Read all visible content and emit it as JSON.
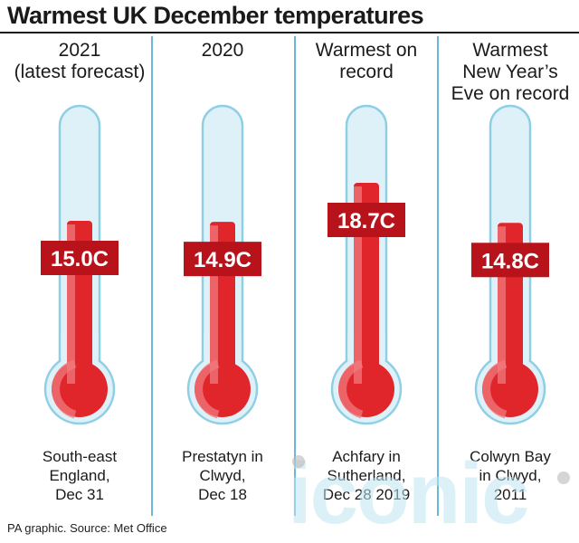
{
  "title": "Warmest UK December temperatures",
  "footnote": "PA graphic. Source: Met Office",
  "watermark": "iconic",
  "colors": {
    "tube_outline": "#8fcfe4",
    "tube_fill": "#dff1f8",
    "mercury": "#e1262b",
    "mercury_shade": "#f07a7e",
    "label_bg": "#b8131b",
    "label_text": "#ffffff",
    "divider": "#3a9fd0"
  },
  "chart_data": {
    "type": "bar",
    "title": "Warmest UK December temperatures",
    "unit": "C",
    "categories": [
      "2021 (latest forecast)",
      "2020",
      "Warmest on record",
      "Warmest New Year's Eve on record"
    ],
    "values": [
      15.0,
      14.9,
      18.7,
      14.8
    ],
    "value_labels": [
      "15.0C",
      "14.9C",
      "18.7C",
      "14.8C"
    ],
    "headers": [
      [
        "2021",
        "(latest forecast)"
      ],
      [
        "2020"
      ],
      [
        "Warmest on",
        "record"
      ],
      [
        "Warmest",
        "New Year’s",
        "Eve on record"
      ]
    ],
    "locations": [
      [
        "South-east",
        "England,",
        "Dec 31"
      ],
      [
        "Prestatyn in",
        "Clwyd,",
        "Dec 18"
      ],
      [
        "Achfary in",
        "Sutherland,",
        "Dec 28 2019"
      ],
      [
        "Colwyn Bay",
        "in Clwyd,",
        "2011"
      ]
    ]
  }
}
